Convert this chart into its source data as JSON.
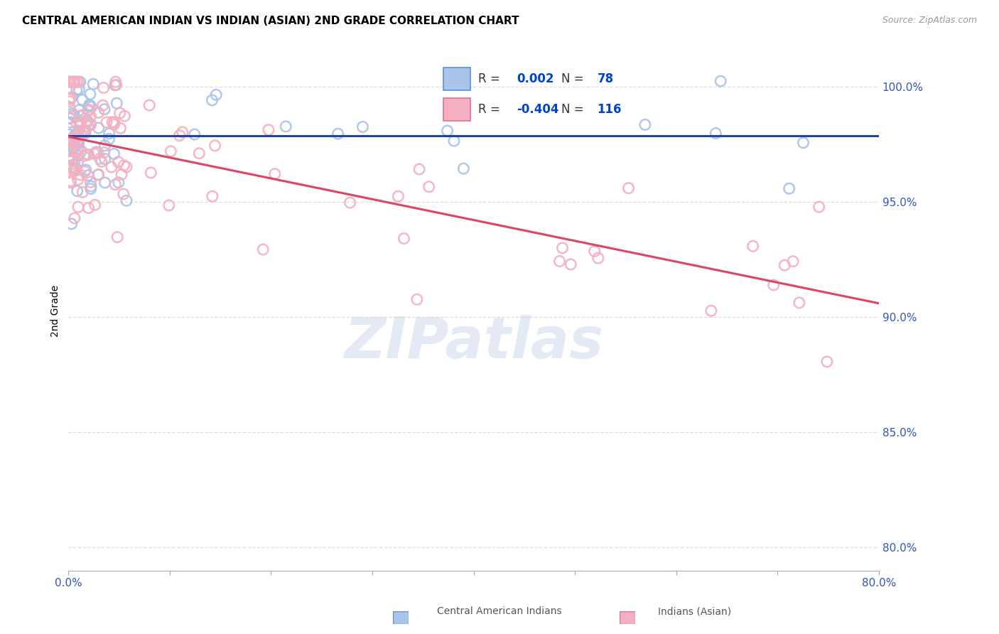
{
  "title": "CENTRAL AMERICAN INDIAN VS INDIAN (ASIAN) 2ND GRADE CORRELATION CHART",
  "source": "Source: ZipAtlas.com",
  "ylabel": "2nd Grade",
  "ylabel_right_labels": [
    "100.0%",
    "95.0%",
    "90.0%",
    "85.0%",
    "80.0%"
  ],
  "ylabel_right_values": [
    1.0,
    0.95,
    0.9,
    0.85,
    0.8
  ],
  "xmin": 0.0,
  "xmax": 0.8,
  "ymin": 0.79,
  "ymax": 1.015,
  "blue_color": "#a8c4e8",
  "blue_edge_color": "#6090cc",
  "pink_color": "#f4b0c0",
  "pink_edge_color": "#e07090",
  "blue_line_color": "#2244aa",
  "pink_line_color": "#dd4466",
  "watermark": "ZIPatlas",
  "blue_R": 0.002,
  "blue_N": 78,
  "pink_R": -0.404,
  "pink_N": 116,
  "legend_R_color": "#0044cc",
  "legend_N_color": "#0044cc",
  "grid_color": "#dddddd",
  "bottom_legend_color": "#555555"
}
